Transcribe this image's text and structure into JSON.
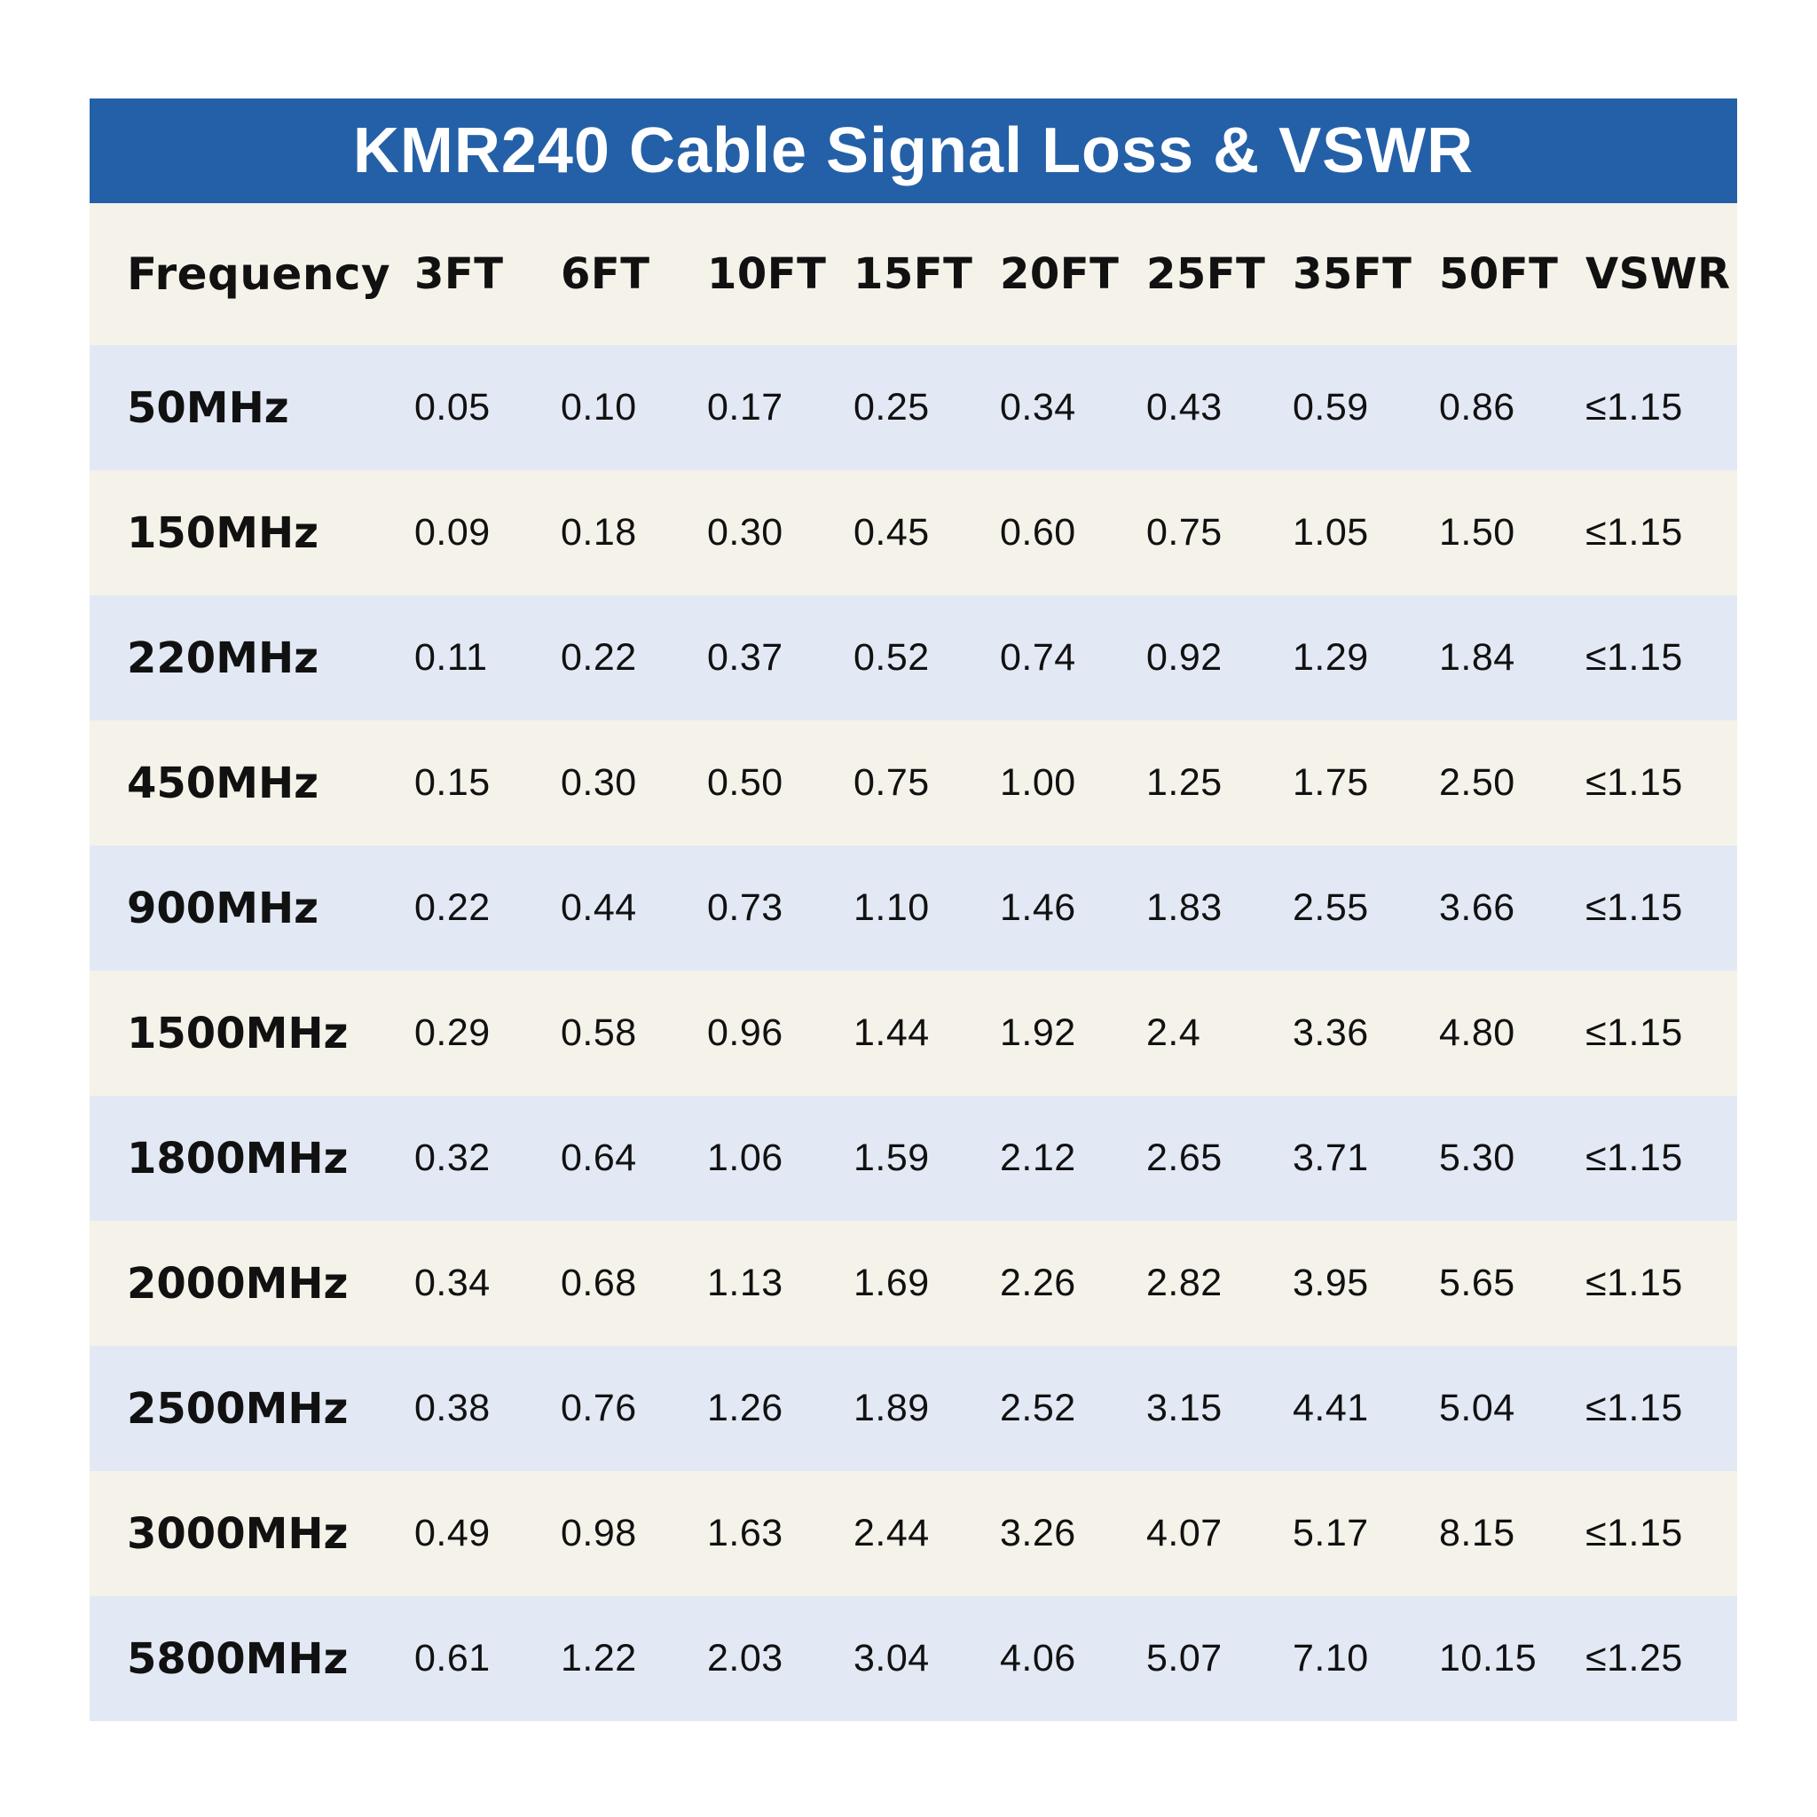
{
  "title": "KMR240 Cable Signal Loss & VSWR",
  "colors": {
    "header_band": "#2460a7",
    "row_blue": "#e2e9f5",
    "row_cream": "#f5f2e9"
  },
  "chart_data": {
    "type": "table",
    "title": "KMR240 Cable Signal Loss & VSWR",
    "columns": [
      "Frequency",
      "3FT",
      "6FT",
      "10FT",
      "15FT",
      "20FT",
      "25FT",
      "35FT",
      "50FT",
      "VSWR"
    ],
    "rows": [
      [
        "50MHz",
        "0.05",
        "0.10",
        "0.17",
        "0.25",
        "0.34",
        "0.43",
        "0.59",
        "0.86",
        "≤1.15"
      ],
      [
        "150MHz",
        "0.09",
        "0.18",
        "0.30",
        "0.45",
        "0.60",
        "0.75",
        "1.05",
        "1.50",
        "≤1.15"
      ],
      [
        "220MHz",
        "0.11",
        "0.22",
        "0.37",
        "0.52",
        "0.74",
        "0.92",
        "1.29",
        "1.84",
        "≤1.15"
      ],
      [
        "450MHz",
        "0.15",
        "0.30",
        "0.50",
        "0.75",
        "1.00",
        "1.25",
        "1.75",
        "2.50",
        "≤1.15"
      ],
      [
        "900MHz",
        "0.22",
        "0.44",
        "0.73",
        "1.10",
        "1.46",
        "1.83",
        "2.55",
        "3.66",
        "≤1.15"
      ],
      [
        "1500MHz",
        "0.29",
        "0.58",
        "0.96",
        "1.44",
        "1.92",
        "2.4",
        "3.36",
        "4.80",
        "≤1.15"
      ],
      [
        "1800MHz",
        "0.32",
        "0.64",
        "1.06",
        "1.59",
        "2.12",
        "2.65",
        "3.71",
        "5.30",
        "≤1.15"
      ],
      [
        "2000MHz",
        "0.34",
        "0.68",
        "1.13",
        "1.69",
        "2.26",
        "2.82",
        "3.95",
        "5.65",
        "≤1.15"
      ],
      [
        "2500MHz",
        "0.38",
        "0.76",
        "1.26",
        "1.89",
        "2.52",
        "3.15",
        "4.41",
        "5.04",
        "≤1.15"
      ],
      [
        "3000MHz",
        "0.49",
        "0.98",
        "1.63",
        "2.44",
        "3.26",
        "4.07",
        "5.17",
        "8.15",
        "≤1.15"
      ],
      [
        "5800MHz",
        "0.61",
        "1.22",
        "2.03",
        "3.04",
        "4.06",
        "5.07",
        "7.10",
        "10.15",
        "≤1.25"
      ]
    ]
  }
}
